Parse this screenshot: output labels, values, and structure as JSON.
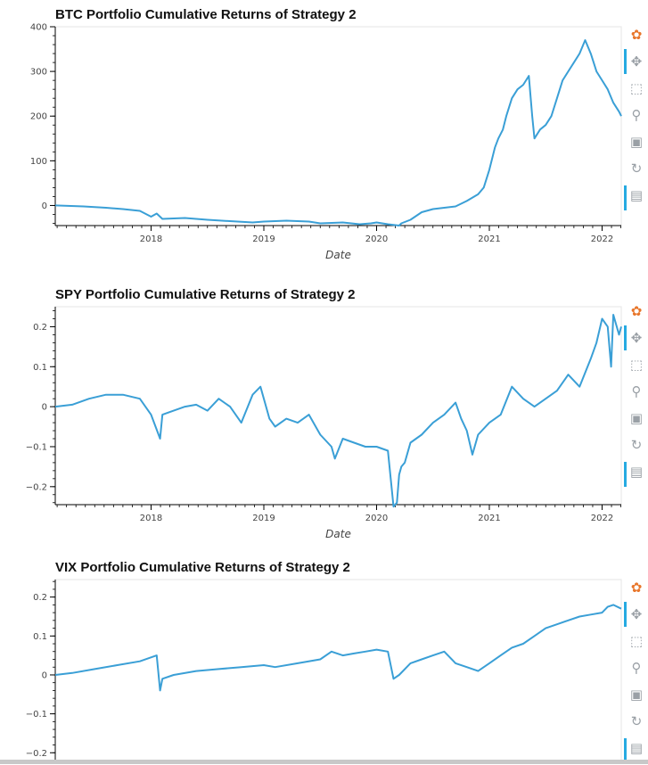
{
  "toolbar": {
    "icons": [
      "bokeh-logo-icon",
      "pan-icon",
      "box-zoom-icon",
      "wheel-zoom-icon",
      "save-icon",
      "reset-icon",
      "hover-icon"
    ],
    "accent": "#26aae1"
  },
  "chart_data": [
    {
      "type": "line",
      "title": "BTC Portfolio Cumulative Returns of Strategy 2",
      "xlabel": "Date",
      "ylabel": "",
      "color": "#3a9fd6",
      "xlim": [
        2017.15,
        2022.17
      ],
      "ylim": [
        -45,
        400
      ],
      "xticks": [
        2018,
        2019,
        2020,
        2021,
        2022
      ],
      "xtick_labels": [
        "2018",
        "2019",
        "2020",
        "2021",
        "2022"
      ],
      "yticks": [
        0,
        100,
        200,
        300,
        400
      ],
      "ytick_labels": [
        "0",
        "100",
        "200",
        "300",
        "400"
      ],
      "x": [
        2017.15,
        2017.4,
        2017.6,
        2017.75,
        2017.9,
        2018.0,
        2018.05,
        2018.1,
        2018.3,
        2018.5,
        2018.7,
        2018.9,
        2019.0,
        2019.2,
        2019.4,
        2019.5,
        2019.7,
        2019.85,
        2019.95,
        2020.0,
        2020.1,
        2020.2,
        2020.22,
        2020.3,
        2020.4,
        2020.5,
        2020.6,
        2020.7,
        2020.8,
        2020.9,
        2020.95,
        2021.0,
        2021.05,
        2021.08,
        2021.12,
        2021.15,
        2021.2,
        2021.25,
        2021.3,
        2021.35,
        2021.38,
        2021.4,
        2021.45,
        2021.5,
        2021.55,
        2021.6,
        2021.65,
        2021.7,
        2021.75,
        2021.8,
        2021.85,
        2021.9,
        2021.95,
        2022.0,
        2022.05,
        2022.1,
        2022.15,
        2022.17
      ],
      "y": [
        0,
        -2,
        -5,
        -8,
        -12,
        -25,
        -18,
        -30,
        -28,
        -32,
        -35,
        -38,
        -36,
        -34,
        -36,
        -40,
        -38,
        -42,
        -40,
        -38,
        -42,
        -45,
        -40,
        -32,
        -15,
        -8,
        -5,
        -2,
        10,
        25,
        40,
        80,
        130,
        150,
        170,
        200,
        240,
        260,
        270,
        290,
        200,
        150,
        170,
        180,
        200,
        240,
        280,
        300,
        320,
        340,
        370,
        340,
        300,
        280,
        260,
        230,
        210,
        200
      ]
    },
    {
      "type": "line",
      "title": "SPY Portfolio Cumulative Returns of Strategy 2",
      "xlabel": "Date",
      "ylabel": "",
      "color": "#3a9fd6",
      "xlim": [
        2017.15,
        2022.17
      ],
      "ylim": [
        -0.245,
        0.25
      ],
      "xticks": [
        2018,
        2019,
        2020,
        2021,
        2022
      ],
      "xtick_labels": [
        "2018",
        "2019",
        "2020",
        "2021",
        "2022"
      ],
      "yticks": [
        -0.2,
        -0.1,
        0,
        0.1,
        0.2
      ],
      "ytick_labels": [
        "−0.2",
        "−0.1",
        "0",
        "0.1",
        "0.2"
      ],
      "x": [
        2017.15,
        2017.3,
        2017.45,
        2017.6,
        2017.75,
        2017.9,
        2018.0,
        2018.08,
        2018.1,
        2018.2,
        2018.3,
        2018.4,
        2018.5,
        2018.6,
        2018.7,
        2018.8,
        2018.9,
        2018.97,
        2019.0,
        2019.05,
        2019.1,
        2019.2,
        2019.3,
        2019.4,
        2019.5,
        2019.6,
        2019.63,
        2019.7,
        2019.8,
        2019.9,
        2020.0,
        2020.1,
        2020.15,
        2020.18,
        2020.2,
        2020.22,
        2020.25,
        2020.3,
        2020.4,
        2020.5,
        2020.6,
        2020.7,
        2020.75,
        2020.8,
        2020.85,
        2020.9,
        2021.0,
        2021.1,
        2021.2,
        2021.3,
        2021.4,
        2021.5,
        2021.6,
        2021.7,
        2021.8,
        2021.9,
        2021.95,
        2022.0,
        2022.05,
        2022.08,
        2022.1,
        2022.15,
        2022.17
      ],
      "y": [
        0,
        0.005,
        0.02,
        0.03,
        0.03,
        0.02,
        -0.02,
        -0.08,
        -0.02,
        -0.01,
        0.0,
        0.005,
        -0.01,
        0.02,
        0.0,
        -0.04,
        0.03,
        0.05,
        0.02,
        -0.03,
        -0.05,
        -0.03,
        -0.04,
        -0.02,
        -0.07,
        -0.1,
        -0.13,
        -0.08,
        -0.09,
        -0.1,
        -0.1,
        -0.11,
        -0.25,
        -0.24,
        -0.17,
        -0.15,
        -0.14,
        -0.09,
        -0.07,
        -0.04,
        -0.02,
        0.01,
        -0.03,
        -0.06,
        -0.12,
        -0.07,
        -0.04,
        -0.02,
        0.05,
        0.02,
        0.0,
        0.02,
        0.04,
        0.08,
        0.05,
        0.12,
        0.16,
        0.22,
        0.2,
        0.1,
        0.23,
        0.18,
        0.2
      ]
    },
    {
      "type": "line",
      "title": "VIX Portfolio Cumulative Returns of Strategy 2",
      "xlabel": "",
      "ylabel": "",
      "color": "#3a9fd6",
      "xlim": [
        2017.15,
        2022.17
      ],
      "ylim": [
        -0.22,
        0.245
      ],
      "xticks": [],
      "xtick_labels": [],
      "yticks": [
        -0.2,
        -0.1,
        0,
        0.1,
        0.2
      ],
      "ytick_labels": [
        "−0.2",
        "−0.1",
        "0",
        "0.1",
        "0.2"
      ],
      "x": [
        2017.15,
        2017.3,
        2017.5,
        2017.7,
        2017.9,
        2018.05,
        2018.08,
        2018.1,
        2018.2,
        2018.4,
        2018.6,
        2018.8,
        2019.0,
        2019.1,
        2019.3,
        2019.5,
        2019.6,
        2019.7,
        2019.8,
        2019.9,
        2020.0,
        2020.1,
        2020.15,
        2020.2,
        2020.3,
        2020.4,
        2020.5,
        2020.6,
        2020.7,
        2020.8,
        2020.9,
        2021.0,
        2021.1,
        2021.2,
        2021.3,
        2021.4,
        2021.5,
        2021.6,
        2021.7,
        2021.8,
        2021.9,
        2022.0,
        2022.05,
        2022.1,
        2022.17
      ],
      "y": [
        0,
        0.005,
        0.015,
        0.025,
        0.035,
        0.05,
        -0.04,
        -0.01,
        0.0,
        0.01,
        0.015,
        0.02,
        0.025,
        0.02,
        0.03,
        0.04,
        0.06,
        0.05,
        0.055,
        0.06,
        0.065,
        0.06,
        -0.01,
        0.0,
        0.03,
        0.04,
        0.05,
        0.06,
        0.03,
        0.02,
        0.01,
        0.03,
        0.05,
        0.07,
        0.08,
        0.1,
        0.12,
        0.13,
        0.14,
        0.15,
        0.155,
        0.16,
        0.175,
        0.18,
        0.17
      ]
    }
  ]
}
